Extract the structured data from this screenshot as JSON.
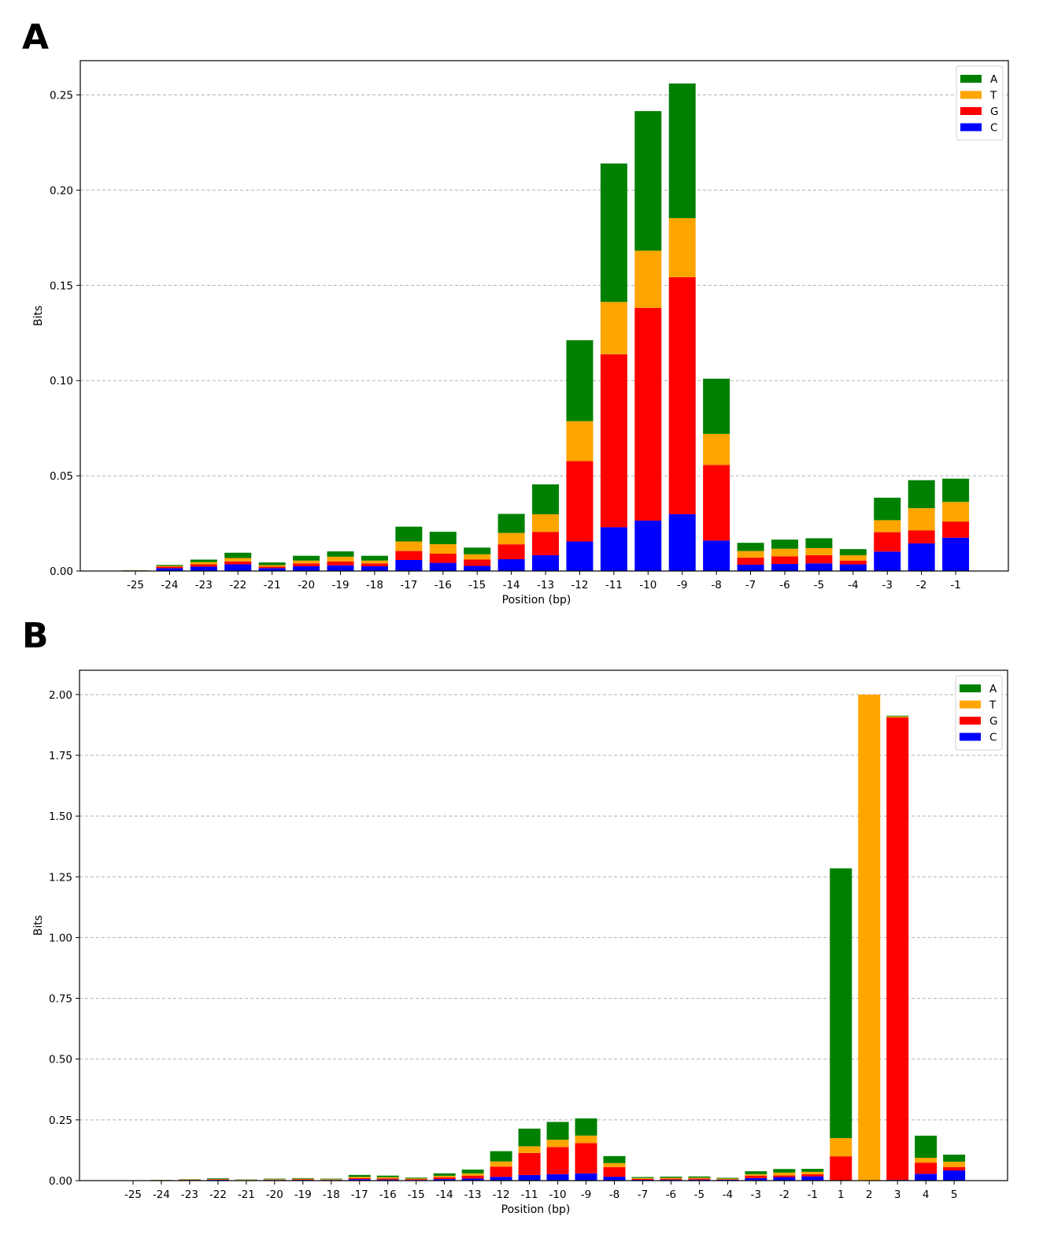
{
  "colors": {
    "A": "#008000",
    "T": "#ffa500",
    "G": "#ff0000",
    "C": "#0000ff"
  },
  "chart_data": [
    {
      "panel_label": "A",
      "type": "bar",
      "stacked": true,
      "xlabel": "Position (bp)",
      "ylabel": "Bits",
      "ylim": [
        0,
        0.268
      ],
      "yticks": [
        "0.00",
        "0.05",
        "0.10",
        "0.15",
        "0.20",
        "0.25"
      ],
      "ytick_values": [
        0,
        0.05,
        0.1,
        0.15,
        0.2,
        0.25
      ],
      "grid": "y-dashed",
      "legend_position": "top-right",
      "legend": [
        "A",
        "T",
        "G",
        "C"
      ],
      "categories": [
        "-25",
        "-24",
        "-23",
        "-22",
        "-21",
        "-20",
        "-19",
        "-18",
        "-17",
        "-16",
        "-15",
        "-14",
        "-13",
        "-12",
        "-11",
        "-10",
        "-9",
        "-8",
        "-7",
        "-6",
        "-5",
        "-4",
        "-3",
        "-2",
        "-1"
      ],
      "series": [
        {
          "name": "C",
          "values": [
            0.0,
            0.0015,
            0.0023,
            0.0035,
            0.0015,
            0.0025,
            0.003,
            0.0025,
            0.0058,
            0.0043,
            0.0027,
            0.0062,
            0.0083,
            0.0155,
            0.023,
            0.0265,
            0.0298,
            0.016,
            0.0033,
            0.0037,
            0.004,
            0.0035,
            0.0102,
            0.0145,
            0.0175
          ]
        },
        {
          "name": "G",
          "values": [
            0.0,
            0.0008,
            0.0012,
            0.0015,
            0.0008,
            0.0015,
            0.002,
            0.0015,
            0.0047,
            0.0048,
            0.0033,
            0.0078,
            0.0122,
            0.0422,
            0.0908,
            0.1117,
            0.1245,
            0.0397,
            0.0037,
            0.004,
            0.0043,
            0.002,
            0.0102,
            0.0068,
            0.0085
          ]
        },
        {
          "name": "T",
          "values": [
            0.0003,
            0.0004,
            0.0012,
            0.0018,
            0.0008,
            0.0015,
            0.0025,
            0.0015,
            0.005,
            0.005,
            0.0028,
            0.006,
            0.0093,
            0.021,
            0.0275,
            0.03,
            0.031,
            0.0163,
            0.0035,
            0.004,
            0.0037,
            0.0028,
            0.0063,
            0.0117,
            0.0103
          ]
        },
        {
          "name": "A",
          "values": [
            0.0001,
            0.0005,
            0.0013,
            0.0028,
            0.0014,
            0.0025,
            0.0028,
            0.0025,
            0.0078,
            0.0065,
            0.0035,
            0.01,
            0.0157,
            0.0425,
            0.0727,
            0.0733,
            0.0707,
            0.029,
            0.0043,
            0.0048,
            0.0052,
            0.0032,
            0.0118,
            0.0147,
            0.0122
          ]
        }
      ]
    },
    {
      "panel_label": "B",
      "type": "bar",
      "stacked": true,
      "xlabel": "Position (bp)",
      "ylabel": "Bits",
      "ylim": [
        0,
        2.1
      ],
      "yticks": [
        "0.00",
        "0.25",
        "0.50",
        "0.75",
        "1.00",
        "1.25",
        "1.50",
        "1.75",
        "2.00"
      ],
      "ytick_values": [
        0,
        0.25,
        0.5,
        0.75,
        1.0,
        1.25,
        1.5,
        1.75,
        2.0
      ],
      "grid": "y-dashed",
      "legend_position": "top-right",
      "legend": [
        "A",
        "T",
        "G",
        "C"
      ],
      "categories": [
        "-25",
        "-24",
        "-23",
        "-22",
        "-21",
        "-20",
        "-19",
        "-18",
        "-17",
        "-16",
        "-15",
        "-14",
        "-13",
        "-12",
        "-11",
        "-10",
        "-9",
        "-8",
        "-7",
        "-6",
        "-5",
        "-4",
        "-3",
        "-2",
        "-1",
        "1",
        "2",
        "3",
        "4",
        "5"
      ],
      "series": [
        {
          "name": "C",
          "values": [
            0.0,
            0.0015,
            0.0023,
            0.0035,
            0.0015,
            0.0025,
            0.003,
            0.0025,
            0.0058,
            0.0043,
            0.0027,
            0.0062,
            0.0083,
            0.0155,
            0.023,
            0.0265,
            0.0298,
            0.016,
            0.0033,
            0.0037,
            0.004,
            0.0035,
            0.0102,
            0.0145,
            0.0175,
            0.0,
            0.0,
            0.003,
            0.028,
            0.042
          ]
        },
        {
          "name": "G",
          "values": [
            0.0,
            0.0008,
            0.0012,
            0.0015,
            0.0008,
            0.0015,
            0.002,
            0.0015,
            0.0047,
            0.0048,
            0.0033,
            0.0078,
            0.0122,
            0.0422,
            0.0908,
            0.1117,
            0.1245,
            0.0397,
            0.0037,
            0.004,
            0.0043,
            0.002,
            0.0102,
            0.0068,
            0.0085,
            0.1,
            0.0,
            1.903,
            0.046,
            0.014
          ]
        },
        {
          "name": "T",
          "values": [
            0.0003,
            0.0004,
            0.0012,
            0.0018,
            0.0008,
            0.0015,
            0.0025,
            0.0015,
            0.005,
            0.005,
            0.0028,
            0.006,
            0.0093,
            0.021,
            0.0275,
            0.03,
            0.031,
            0.0163,
            0.0035,
            0.004,
            0.0037,
            0.0028,
            0.0063,
            0.0117,
            0.0103,
            0.075,
            2.0,
            0.004,
            0.02,
            0.022
          ]
        },
        {
          "name": "A",
          "values": [
            0.0001,
            0.0005,
            0.0013,
            0.0028,
            0.0014,
            0.0025,
            0.0028,
            0.0025,
            0.0078,
            0.0065,
            0.0035,
            0.01,
            0.0157,
            0.0425,
            0.0727,
            0.0733,
            0.0707,
            0.029,
            0.0043,
            0.0048,
            0.0052,
            0.0032,
            0.0118,
            0.0147,
            0.0122,
            1.11,
            0.0,
            0.003,
            0.091,
            0.029
          ]
        }
      ]
    }
  ]
}
